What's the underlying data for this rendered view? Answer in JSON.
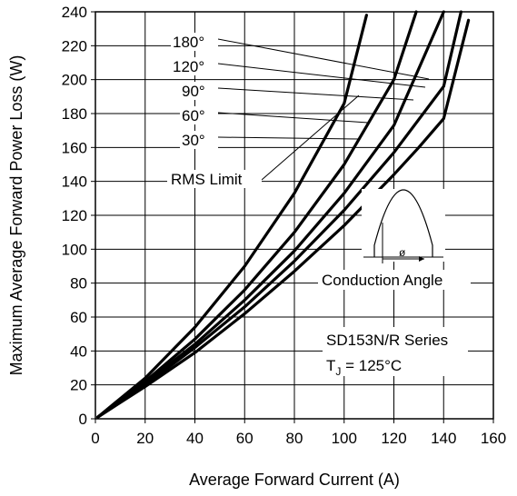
{
  "chart_data": {
    "type": "line",
    "xlabel": "Average Forward Current (A)",
    "ylabel": "Maximum Average Forward Power Loss (W)",
    "xlim": [
      0,
      160
    ],
    "ylim": [
      0,
      240
    ],
    "x_ticks": [
      "0",
      "20",
      "40",
      "60",
      "80",
      "100",
      "120",
      "140",
      "160"
    ],
    "y_ticks": [
      "0",
      "20",
      "40",
      "60",
      "80",
      "100",
      "120",
      "140",
      "160",
      "180",
      "200",
      "220",
      "240"
    ],
    "grid": true,
    "series": [
      {
        "name": "180°",
        "x": [
          1,
          20,
          40,
          60,
          80,
          100,
          120,
          130,
          140,
          150
        ],
        "y": [
          1,
          19,
          39,
          62,
          87,
          114,
          144,
          160,
          177,
          235
        ]
      },
      {
        "name": "120°",
        "x": [
          1,
          20,
          40,
          60,
          80,
          100,
          120,
          140,
          147
        ],
        "y": [
          1,
          20,
          42,
          66,
          93,
          123,
          157,
          196,
          240
        ]
      },
      {
        "name": "90°",
        "x": [
          1,
          20,
          40,
          60,
          80,
          100,
          120,
          140
        ],
        "y": [
          1,
          21,
          44,
          70,
          99,
          133,
          173,
          240
        ]
      },
      {
        "name": "60°",
        "x": [
          1,
          20,
          40,
          60,
          80,
          100,
          120,
          129
        ],
        "y": [
          1,
          22,
          47,
          76,
          110,
          150,
          200,
          240
        ]
      },
      {
        "name": "30°",
        "x": [
          1,
          20,
          40,
          60,
          80,
          100,
          109
        ],
        "y": [
          1,
          24,
          54,
          90,
          133,
          186,
          238
        ]
      }
    ],
    "rms_limit_label": "RMS Limit",
    "conduction_angle_label": "Conduction Angle",
    "phi_symbol": "ø",
    "series_label": "SD153N/R Series",
    "tj_prefix": "T",
    "tj_sub": "J",
    "tj_value": " = 125°C"
  }
}
